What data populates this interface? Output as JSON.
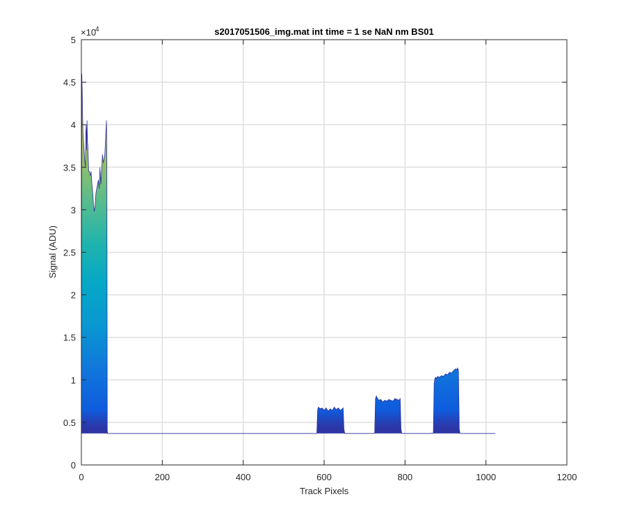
{
  "chart_data": {
    "type": "area",
    "title": "s2017051506_img.mat int time = 1 se  NaN nm BS01",
    "xlabel": "Track Pixels",
    "ylabel": "Signal (ADU)",
    "y_exponent_label": "×10",
    "y_exponent_power": "4",
    "xlim": [
      0,
      1200
    ],
    "ylim": [
      0,
      50000
    ],
    "x_ticks": [
      0,
      200,
      400,
      600,
      800,
      1000,
      1200
    ],
    "x_tick_labels": [
      "0",
      "200",
      "400",
      "600",
      "800",
      "1000",
      "1200"
    ],
    "y_ticks": [
      0,
      5000,
      10000,
      15000,
      20000,
      25000,
      30000,
      35000,
      40000,
      45000,
      50000
    ],
    "y_tick_labels": [
      "0",
      "0.5",
      "1",
      "1.5",
      "2",
      "2.5",
      "3",
      "3.5",
      "4",
      "4.5",
      "5"
    ],
    "grid": true,
    "colormap": "parula",
    "baseline": 3700,
    "series": [
      {
        "x": [
          0,
          1,
          2,
          3,
          4,
          6,
          8,
          10,
          11,
          12,
          13,
          14,
          15,
          16,
          18,
          20,
          22,
          24,
          26,
          28,
          30,
          32,
          34,
          36,
          38,
          40,
          42,
          44,
          46,
          48,
          50,
          52,
          54,
          56,
          58,
          60,
          62,
          63,
          64,
          65,
          66,
          68,
          70,
          100,
          150,
          200,
          250,
          300,
          350,
          400,
          450,
          500,
          550,
          580,
          582,
          584,
          586,
          590,
          595,
          600,
          605,
          610,
          615,
          620,
          625,
          630,
          635,
          640,
          645,
          647,
          649,
          651,
          660,
          700,
          720,
          725,
          727,
          729,
          731,
          735,
          740,
          745,
          750,
          755,
          760,
          765,
          770,
          775,
          780,
          785,
          788,
          790,
          792,
          794,
          800,
          830,
          860,
          870,
          872,
          874,
          876,
          878,
          880,
          885,
          890,
          895,
          900,
          905,
          910,
          915,
          920,
          925,
          928,
          930,
          932,
          934,
          936,
          938,
          940,
          960,
          1000,
          1023
        ],
        "y": [
          3700,
          46000,
          44000,
          41000,
          39000,
          37500,
          36000,
          35000,
          39000,
          40000,
          37000,
          40500,
          38000,
          37500,
          34500,
          34500,
          34000,
          34500,
          33000,
          32000,
          30500,
          29800,
          30500,
          32000,
          32500,
          33000,
          33500,
          32500,
          35000,
          33000,
          34500,
          36500,
          35500,
          36000,
          36500,
          38500,
          40500,
          36000,
          4000,
          3700,
          3700,
          3700,
          3700,
          3700,
          3700,
          3700,
          3700,
          3700,
          3700,
          3700,
          3700,
          3700,
          3700,
          3700,
          3750,
          6500,
          6800,
          6600,
          6700,
          6400,
          6700,
          6300,
          6600,
          6400,
          6800,
          6500,
          6700,
          6400,
          6600,
          6700,
          4200,
          3700,
          3700,
          3700,
          3700,
          3750,
          7800,
          8100,
          7900,
          7600,
          7700,
          7400,
          7600,
          7500,
          7700,
          7600,
          7500,
          7800,
          7700,
          7600,
          7800,
          4200,
          3700,
          3700,
          3700,
          3700,
          3700,
          3750,
          9600,
          10200,
          10300,
          10100,
          10400,
          10300,
          10500,
          10400,
          10700,
          10600,
          10900,
          10800,
          11100,
          11300,
          11200,
          11400,
          11100,
          4200,
          3700,
          3700,
          3700,
          3700,
          3700,
          3700
        ]
      }
    ]
  }
}
